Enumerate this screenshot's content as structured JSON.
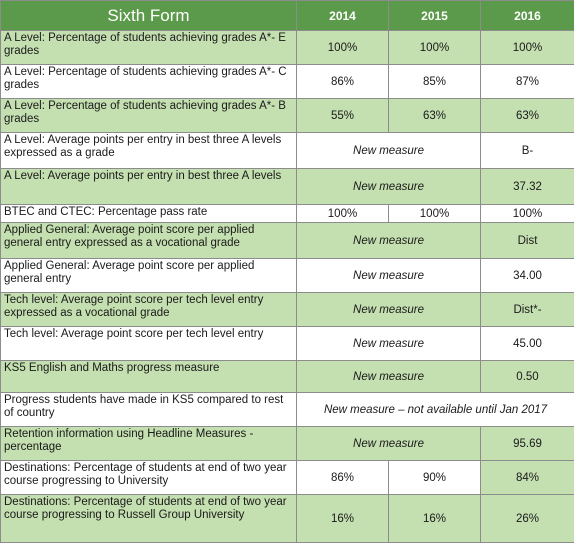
{
  "header": {
    "title": "Sixth Form",
    "years": [
      "2014",
      "2015",
      "2016"
    ]
  },
  "rows": [
    {
      "label": "A Level: Percentage of students achieving grades A*- E grades",
      "v2014": "100%",
      "v2015": "100%",
      "v2016": "100%"
    },
    {
      "label": "A Level: Percentage of students achieving grades A*- C grades",
      "v2014": "86%",
      "v2015": "85%",
      "v2016": "87%"
    },
    {
      "label": "A Level: Percentage of students achieving grades A*- B grades",
      "v2014": "55%",
      "v2015": "63%",
      "v2016": "63%"
    },
    {
      "label": "A Level: Average points per entry in best three A levels expressed as a grade",
      "merged": "New measure",
      "v2016": "B-"
    },
    {
      "label": "A Level: Average points per entry in best three A levels",
      "merged": "New measure",
      "v2016": "37.32"
    },
    {
      "label": "BTEC and CTEC: Percentage pass rate",
      "v2014": "100%",
      "v2015": "100%",
      "v2016": "100%"
    },
    {
      "label": "Applied General: Average point score per applied general entry expressed as a vocational grade",
      "merged": "New measure",
      "v2016": "Dist"
    },
    {
      "label": "Applied General: Average point score per applied general entry",
      "merged": "New measure",
      "v2016": "34.00"
    },
    {
      "label": "Tech level: Average point score per tech level entry expressed as a vocational grade",
      "merged": "New measure",
      "v2016": "Dist*-"
    },
    {
      "label": "Tech level: Average point score per tech level entry",
      "merged": "New measure",
      "v2016": "45.00"
    },
    {
      "label": "KS5 English and Maths progress measure",
      "merged": "New measure",
      "v2016": "0.50"
    },
    {
      "label": "Progress students have made in KS5 compared to rest of country",
      "merged3": "New measure – not available until Jan 2017"
    },
    {
      "label": "Retention information using Headline Measures - percentage",
      "merged": "New measure",
      "v2016": "95.69"
    },
    {
      "label": "Destinations: Percentage of students at end of two year course progressing to University",
      "v2014": "86%",
      "v2015": "90%",
      "v2016": "84%"
    },
    {
      "label": "Destinations: Percentage of students at end of two year course progressing to Russell Group University",
      "v2014": "16%",
      "v2015": "16%",
      "v2016": "26%"
    }
  ],
  "colors": {
    "header_bg": "#5b9a4a",
    "row_green": "#c4dfb0",
    "row_white": "#ffffff",
    "border": "#8c8c8c"
  }
}
